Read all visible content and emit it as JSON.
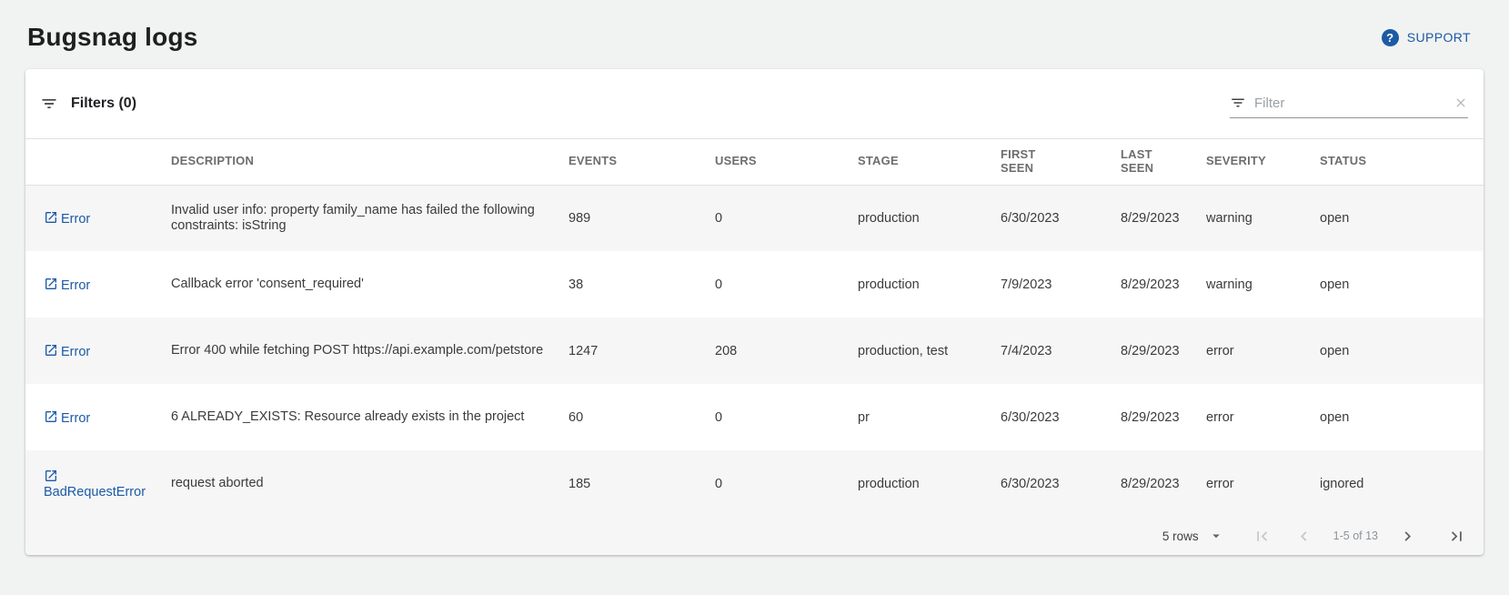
{
  "page": {
    "title": "Bugsnag logs"
  },
  "header": {
    "support_label": "SUPPORT",
    "help_icon": "help-circle-icon"
  },
  "filters": {
    "label": "Filters (0)",
    "filter_icon": "filter-list-icon",
    "input": {
      "value": "",
      "placeholder": "Filter"
    },
    "clear_icon": "close-icon"
  },
  "table": {
    "columns": [
      "",
      "DESCRIPTION",
      "EVENTS",
      "USERS",
      "STAGE",
      "FIRST SEEN",
      "LAST SEEN",
      "SEVERITY",
      "STATUS"
    ],
    "rows": [
      {
        "link": "Error",
        "description": "Invalid user info: property family_name has failed the following constraints: isString",
        "events": 989,
        "users": 0,
        "stage": "production",
        "first_seen": "6/30/2023",
        "last_seen": "8/29/2023",
        "severity": "warning",
        "status": "open"
      },
      {
        "link": "Error",
        "description": "Callback error 'consent_required'",
        "events": 38,
        "users": 0,
        "stage": "production",
        "first_seen": "7/9/2023",
        "last_seen": "8/29/2023",
        "severity": "warning",
        "status": "open"
      },
      {
        "link": "Error",
        "description": "Error 400 while fetching POST https://api.example.com/petstore",
        "events": 1247,
        "users": 208,
        "stage": "production, test",
        "first_seen": "7/4/2023",
        "last_seen": "8/29/2023",
        "severity": "error",
        "status": "open"
      },
      {
        "link": "Error",
        "description": "6 ALREADY_EXISTS: Resource already exists in the project",
        "events": 60,
        "users": 0,
        "stage": "pr",
        "first_seen": "6/30/2023",
        "last_seen": "8/29/2023",
        "severity": "error",
        "status": "open"
      },
      {
        "link": "BadRequestError",
        "description": "request aborted",
        "events": 185,
        "users": 0,
        "stage": "production",
        "first_seen": "6/30/2023",
        "last_seen": "8/29/2023",
        "severity": "error",
        "status": "ignored"
      }
    ]
  },
  "pagination": {
    "rows_per_page": "5 rows",
    "range": "1-5 of 13",
    "first_page_enabled": false,
    "prev_page_enabled": false,
    "next_page_enabled": true,
    "last_page_enabled": true
  },
  "colors": {
    "accent": "#1b5aa5",
    "page_background": "#f1f2f2",
    "row_stripe": "#f6f6f7",
    "table_border": "#e0e0e0",
    "header_text": "#6d6d6d",
    "cell_text": "#3b3b3b"
  }
}
